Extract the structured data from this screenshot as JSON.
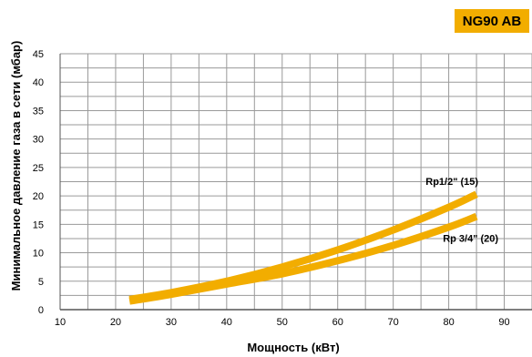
{
  "badge": "NG90 AB",
  "chart_data": {
    "type": "line",
    "xlabel": "Мощность (кВт)",
    "ylabel": "Минимальное давление газа в сети (мбар)",
    "xlim": [
      10,
      95
    ],
    "ylim": [
      0,
      45
    ],
    "x_ticks": [
      10,
      20,
      30,
      40,
      50,
      60,
      70,
      80,
      90
    ],
    "y_ticks": [
      0,
      5,
      10,
      15,
      20,
      25,
      30,
      35,
      40,
      45
    ],
    "x_grid_step": 5,
    "y_grid_step": 2.5,
    "grid": true,
    "line_color": "#f2ad00",
    "series": [
      {
        "name": "Rp1/2\" (15)",
        "x": [
          22.5,
          30,
          40,
          50,
          60,
          70,
          80,
          85
        ],
        "y": [
          1.8,
          3.0,
          5.0,
          7.5,
          10.5,
          14.0,
          18.0,
          20.3
        ]
      },
      {
        "name": "Rp 3/4\" (20)",
        "x": [
          22.5,
          30,
          40,
          50,
          60,
          70,
          80,
          85
        ],
        "y": [
          1.5,
          2.7,
          4.5,
          6.3,
          8.6,
          11.3,
          14.5,
          16.4
        ]
      }
    ]
  }
}
